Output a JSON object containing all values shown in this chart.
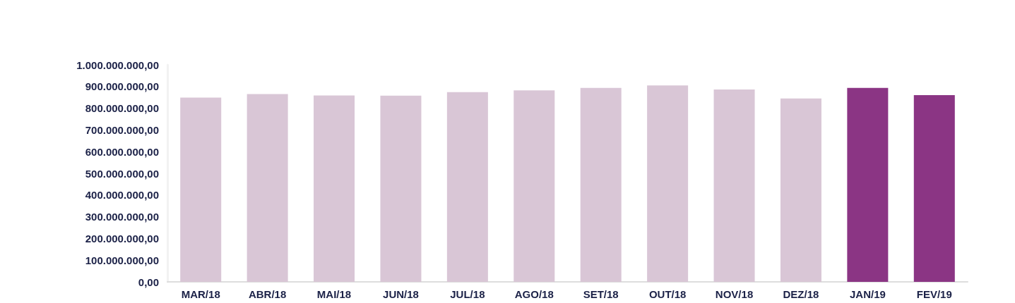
{
  "chart_data": {
    "type": "bar",
    "categories": [
      "MAR/18",
      "ABR/18",
      "MAI/18",
      "JUN/18",
      "JUL/18",
      "AGO/18",
      "SET/18",
      "OUT/18",
      "NOV/18",
      "DEZ/18",
      "JAN/19",
      "FEV/19"
    ],
    "values": [
      849000000,
      865000000,
      859000000,
      858000000,
      874000000,
      882000000,
      894000000,
      905000000,
      886000000,
      845000000,
      894000000,
      860000000
    ],
    "colors": [
      "#d9c6d6",
      "#d9c6d6",
      "#d9c6d6",
      "#d9c6d6",
      "#d9c6d6",
      "#d9c6d6",
      "#d9c6d6",
      "#d9c6d6",
      "#d9c6d6",
      "#d9c6d6",
      "#8b3584",
      "#8b3584"
    ],
    "ylim": [
      0,
      1000000000
    ],
    "yticks": [
      {
        "value": 0,
        "label": "0,00"
      },
      {
        "value": 100000000,
        "label": "100.000.000,00"
      },
      {
        "value": 200000000,
        "label": "200.000.000,00"
      },
      {
        "value": 300000000,
        "label": "300.000.000,00"
      },
      {
        "value": 400000000,
        "label": "400.000.000,00"
      },
      {
        "value": 500000000,
        "label": "500.000.000,00"
      },
      {
        "value": 600000000,
        "label": "600.000.000,00"
      },
      {
        "value": 700000000,
        "label": "700.000.000,00"
      },
      {
        "value": 800000000,
        "label": "800.000.000,00"
      },
      {
        "value": 900000000,
        "label": "900.000.000,00"
      },
      {
        "value": 1000000000,
        "label": "1.000.000.000,00"
      }
    ],
    "grid": false
  }
}
